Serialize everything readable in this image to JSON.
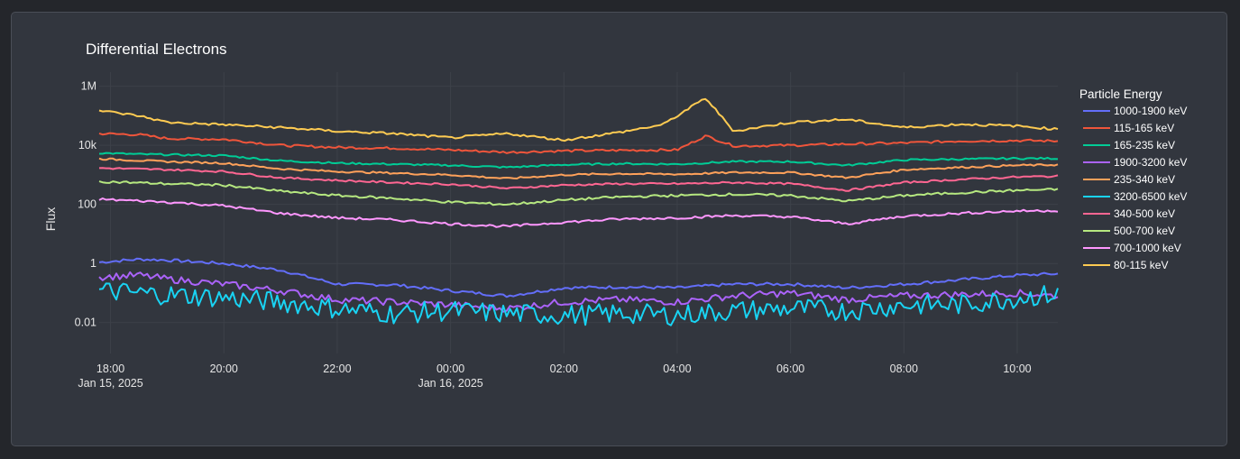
{
  "chart_data": {
    "type": "line",
    "title": "Differential Electrons",
    "xlabel": "",
    "ylabel": "Flux",
    "y_scale": "log",
    "ylim": [
      0.0009,
      3000000
    ],
    "xlim": [
      "2025-01-15T17:48",
      "2025-01-16T10:43"
    ],
    "x_ticks": [
      {
        "t": "2025-01-15T18:00",
        "label": "18:00",
        "date_label": "Jan 15, 2025"
      },
      {
        "t": "2025-01-15T20:00",
        "label": "20:00"
      },
      {
        "t": "2025-01-15T22:00",
        "label": "22:00"
      },
      {
        "t": "2025-01-16T00:00",
        "label": "00:00",
        "date_label": "Jan 16, 2025"
      },
      {
        "t": "2025-01-16T02:00",
        "label": "02:00"
      },
      {
        "t": "2025-01-16T04:00",
        "label": "04:00"
      },
      {
        "t": "2025-01-16T06:00",
        "label": "06:00"
      },
      {
        "t": "2025-01-16T08:00",
        "label": "08:00"
      },
      {
        "t": "2025-01-16T10:00",
        "label": "10:00"
      }
    ],
    "y_ticks": [
      {
        "v": 1000000,
        "label": "1M"
      },
      {
        "v": 10000,
        "label": "10k"
      },
      {
        "v": 100,
        "label": "100"
      },
      {
        "v": 1,
        "label": "1"
      },
      {
        "v": 0.01,
        "label": "0.01"
      }
    ],
    "grid": true,
    "legend": {
      "title": "Particle Energy",
      "placement": "right"
    },
    "series": [
      {
        "name": "1000-1900 keV",
        "color": "#636efa",
        "points": [
          [
            "2025-01-15T17:48",
            1.1
          ],
          [
            "2025-01-15T18:30",
            1.4
          ],
          [
            "2025-01-15T19:00",
            1.3
          ],
          [
            "2025-01-15T20:00",
            1.0
          ],
          [
            "2025-01-15T21:00",
            0.6
          ],
          [
            "2025-01-15T22:00",
            0.2
          ],
          [
            "2025-01-15T23:00",
            0.19
          ],
          [
            "2025-01-16T00:00",
            0.12
          ],
          [
            "2025-01-16T01:00",
            0.08
          ],
          [
            "2025-01-16T02:00",
            0.15
          ],
          [
            "2025-01-16T03:00",
            0.16
          ],
          [
            "2025-01-16T04:00",
            0.15
          ],
          [
            "2025-01-16T05:00",
            0.2
          ],
          [
            "2025-01-16T06:00",
            0.2
          ],
          [
            "2025-01-16T07:00",
            0.15
          ],
          [
            "2025-01-16T08:00",
            0.2
          ],
          [
            "2025-01-16T09:00",
            0.28
          ],
          [
            "2025-01-16T10:00",
            0.4
          ],
          [
            "2025-01-16T10:43",
            0.45
          ]
        ]
      },
      {
        "name": "115-165 keV",
        "color": "#ef553b",
        "points": [
          [
            "2025-01-15T17:48",
            25000
          ],
          [
            "2025-01-15T18:30",
            23000
          ],
          [
            "2025-01-15T19:00",
            17000
          ],
          [
            "2025-01-15T20:00",
            16000
          ],
          [
            "2025-01-15T21:00",
            10000
          ],
          [
            "2025-01-15T22:00",
            8500
          ],
          [
            "2025-01-15T23:00",
            8000
          ],
          [
            "2025-01-16T00:00",
            7000
          ],
          [
            "2025-01-16T01:00",
            5800
          ],
          [
            "2025-01-16T02:00",
            6500
          ],
          [
            "2025-01-16T03:00",
            6800
          ],
          [
            "2025-01-16T04:00",
            7000
          ],
          [
            "2025-01-16T04:30",
            21000
          ],
          [
            "2025-01-16T05:00",
            9500
          ],
          [
            "2025-01-16T06:00",
            10000
          ],
          [
            "2025-01-16T07:00",
            11000
          ],
          [
            "2025-01-16T08:00",
            12000
          ],
          [
            "2025-01-16T09:00",
            14000
          ],
          [
            "2025-01-16T10:00",
            14500
          ],
          [
            "2025-01-16T10:43",
            14000
          ]
        ]
      },
      {
        "name": "165-235 keV",
        "color": "#00cc96",
        "points": [
          [
            "2025-01-15T17:48",
            5500
          ],
          [
            "2025-01-15T18:30",
            5000
          ],
          [
            "2025-01-15T20:00",
            4500
          ],
          [
            "2025-01-15T21:00",
            3000
          ],
          [
            "2025-01-15T22:00",
            2500
          ],
          [
            "2025-01-15T23:00",
            2300
          ],
          [
            "2025-01-16T00:00",
            2100
          ],
          [
            "2025-01-16T01:00",
            1800
          ],
          [
            "2025-01-16T02:00",
            2200
          ],
          [
            "2025-01-16T03:00",
            2400
          ],
          [
            "2025-01-16T04:00",
            2300
          ],
          [
            "2025-01-16T05:00",
            2800
          ],
          [
            "2025-01-16T06:00",
            2800
          ],
          [
            "2025-01-16T07:00",
            2100
          ],
          [
            "2025-01-16T08:00",
            3200
          ],
          [
            "2025-01-16T09:00",
            3400
          ],
          [
            "2025-01-16T10:00",
            3600
          ],
          [
            "2025-01-16T10:43",
            3600
          ]
        ]
      },
      {
        "name": "1900-3200 keV",
        "color": "#ab63fa",
        "points": [
          [
            "2025-01-15T17:48",
            0.35
          ],
          [
            "2025-01-15T18:30",
            0.4
          ],
          [
            "2025-01-15T19:00",
            0.3
          ],
          [
            "2025-01-15T20:00",
            0.2
          ],
          [
            "2025-01-15T21:00",
            0.12
          ],
          [
            "2025-01-15T22:00",
            0.06
          ],
          [
            "2025-01-15T23:00",
            0.05
          ],
          [
            "2025-01-16T00:00",
            0.04
          ],
          [
            "2025-01-16T01:00",
            0.03
          ],
          [
            "2025-01-16T02:00",
            0.05
          ],
          [
            "2025-01-16T03:00",
            0.06
          ],
          [
            "2025-01-16T04:00",
            0.05
          ],
          [
            "2025-01-16T05:00",
            0.08
          ],
          [
            "2025-01-16T06:00",
            0.1
          ],
          [
            "2025-01-16T07:00",
            0.06
          ],
          [
            "2025-01-16T08:00",
            0.08
          ],
          [
            "2025-01-16T09:00",
            0.09
          ],
          [
            "2025-01-16T10:00",
            0.1
          ],
          [
            "2025-01-16T10:43",
            0.08
          ]
        ]
      },
      {
        "name": "235-340 keV",
        "color": "#ffa15a",
        "points": [
          [
            "2025-01-15T17:48",
            3500
          ],
          [
            "2025-01-15T19:00",
            2800
          ],
          [
            "2025-01-15T20:00",
            2500
          ],
          [
            "2025-01-15T21:00",
            1600
          ],
          [
            "2025-01-15T22:00",
            1300
          ],
          [
            "2025-01-15T23:00",
            1150
          ],
          [
            "2025-01-16T00:00",
            1000
          ],
          [
            "2025-01-16T01:00",
            750
          ],
          [
            "2025-01-16T02:00",
            1000
          ],
          [
            "2025-01-16T03:00",
            1100
          ],
          [
            "2025-01-16T04:00",
            1050
          ],
          [
            "2025-01-16T05:00",
            1200
          ],
          [
            "2025-01-16T06:00",
            1200
          ],
          [
            "2025-01-16T07:00",
            800
          ],
          [
            "2025-01-16T08:00",
            1500
          ],
          [
            "2025-01-16T09:00",
            1800
          ],
          [
            "2025-01-16T10:00",
            2100
          ],
          [
            "2025-01-16T10:43",
            2200
          ]
        ]
      },
      {
        "name": "3200-6500 keV",
        "color": "#19d3f3",
        "points": [
          [
            "2025-01-15T17:48",
            0.12
          ],
          [
            "2025-01-15T18:30",
            0.1
          ],
          [
            "2025-01-15T20:00",
            0.07
          ],
          [
            "2025-01-15T21:00",
            0.05
          ],
          [
            "2025-01-15T22:00",
            0.03
          ],
          [
            "2025-01-15T23:00",
            0.02
          ],
          [
            "2025-01-16T00:00",
            0.025
          ],
          [
            "2025-01-16T01:00",
            0.02
          ],
          [
            "2025-01-16T02:00",
            0.018
          ],
          [
            "2025-01-16T03:00",
            0.02
          ],
          [
            "2025-01-16T04:00",
            0.018
          ],
          [
            "2025-01-16T05:00",
            0.025
          ],
          [
            "2025-01-16T06:00",
            0.03
          ],
          [
            "2025-01-16T07:00",
            0.025
          ],
          [
            "2025-01-16T08:00",
            0.04
          ],
          [
            "2025-01-16T09:00",
            0.04
          ],
          [
            "2025-01-16T10:00",
            0.07
          ],
          [
            "2025-01-16T10:43",
            0.09
          ]
        ]
      },
      {
        "name": "340-500 keV",
        "color": "#ff6692",
        "points": [
          [
            "2025-01-15T17:48",
            1700
          ],
          [
            "2025-01-15T19:00",
            1500
          ],
          [
            "2025-01-15T20:00",
            1300
          ],
          [
            "2025-01-15T21:00",
            800
          ],
          [
            "2025-01-15T22:00",
            650
          ],
          [
            "2025-01-15T23:00",
            550
          ],
          [
            "2025-01-16T00:00",
            480
          ],
          [
            "2025-01-16T01:00",
            350
          ],
          [
            "2025-01-16T02:00",
            450
          ],
          [
            "2025-01-16T03:00",
            500
          ],
          [
            "2025-01-16T04:00",
            500
          ],
          [
            "2025-01-16T05:00",
            550
          ],
          [
            "2025-01-16T06:00",
            500
          ],
          [
            "2025-01-16T07:00",
            300
          ],
          [
            "2025-01-16T08:00",
            550
          ],
          [
            "2025-01-16T09:00",
            700
          ],
          [
            "2025-01-16T10:00",
            850
          ],
          [
            "2025-01-16T10:43",
            900
          ]
        ]
      },
      {
        "name": "500-700 keV",
        "color": "#b6e880",
        "points": [
          [
            "2025-01-15T17:48",
            600
          ],
          [
            "2025-01-15T19:00",
            500
          ],
          [
            "2025-01-15T20:00",
            450
          ],
          [
            "2025-01-15T21:00",
            280
          ],
          [
            "2025-01-15T22:00",
            200
          ],
          [
            "2025-01-15T23:00",
            160
          ],
          [
            "2025-01-16T00:00",
            120
          ],
          [
            "2025-01-16T01:00",
            100
          ],
          [
            "2025-01-16T02:00",
            140
          ],
          [
            "2025-01-16T03:00",
            180
          ],
          [
            "2025-01-16T04:00",
            200
          ],
          [
            "2025-01-16T05:00",
            220
          ],
          [
            "2025-01-16T06:00",
            200
          ],
          [
            "2025-01-16T07:00",
            130
          ],
          [
            "2025-01-16T08:00",
            200
          ],
          [
            "2025-01-16T09:00",
            250
          ],
          [
            "2025-01-16T10:00",
            300
          ],
          [
            "2025-01-16T10:43",
            320
          ]
        ]
      },
      {
        "name": "700-1000 keV",
        "color": "#ff97ff",
        "points": [
          [
            "2025-01-15T17:48",
            150
          ],
          [
            "2025-01-15T19:00",
            120
          ],
          [
            "2025-01-15T20:00",
            90
          ],
          [
            "2025-01-15T21:00",
            50
          ],
          [
            "2025-01-15T22:00",
            35
          ],
          [
            "2025-01-15T23:00",
            30
          ],
          [
            "2025-01-16T00:00",
            22
          ],
          [
            "2025-01-16T01:00",
            18
          ],
          [
            "2025-01-16T02:00",
            25
          ],
          [
            "2025-01-16T03:00",
            32
          ],
          [
            "2025-01-16T04:00",
            35
          ],
          [
            "2025-01-16T05:00",
            42
          ],
          [
            "2025-01-16T06:00",
            38
          ],
          [
            "2025-01-16T07:00",
            22
          ],
          [
            "2025-01-16T08:00",
            40
          ],
          [
            "2025-01-16T09:00",
            50
          ],
          [
            "2025-01-16T10:00",
            60
          ],
          [
            "2025-01-16T10:43",
            62
          ]
        ]
      },
      {
        "name": "80-115 keV",
        "color": "#fecb52",
        "points": [
          [
            "2025-01-15T17:48",
            150000
          ],
          [
            "2025-01-15T18:30",
            100000
          ],
          [
            "2025-01-15T19:00",
            60000
          ],
          [
            "2025-01-15T20:00",
            50000
          ],
          [
            "2025-01-15T21:00",
            40000
          ],
          [
            "2025-01-15T22:00",
            30000
          ],
          [
            "2025-01-15T23:00",
            25000
          ],
          [
            "2025-01-16T00:00",
            18000
          ],
          [
            "2025-01-16T01:00",
            25000
          ],
          [
            "2025-01-16T02:00",
            15000
          ],
          [
            "2025-01-16T03:00",
            28000
          ],
          [
            "2025-01-16T03:45",
            50000
          ],
          [
            "2025-01-16T04:30",
            400000
          ],
          [
            "2025-01-16T05:00",
            30000
          ],
          [
            "2025-01-16T06:00",
            60000
          ],
          [
            "2025-01-16T07:00",
            75000
          ],
          [
            "2025-01-16T08:00",
            40000
          ],
          [
            "2025-01-16T09:00",
            52000
          ],
          [
            "2025-01-16T10:00",
            45000
          ],
          [
            "2025-01-16T10:43",
            35000
          ]
        ]
      }
    ]
  }
}
